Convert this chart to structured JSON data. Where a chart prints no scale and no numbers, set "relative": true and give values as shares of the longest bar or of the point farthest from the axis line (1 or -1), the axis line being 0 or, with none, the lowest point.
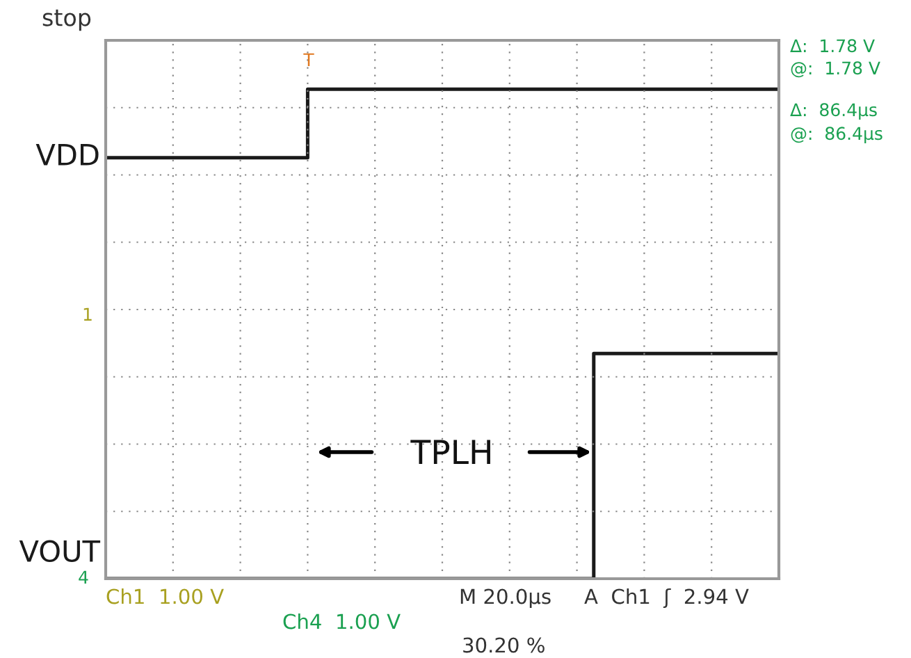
{
  "chart_data": {
    "type": "step",
    "relative": true,
    "grid": true,
    "legend": false,
    "categories": [
      null,
      null,
      null,
      null,
      null,
      null,
      null,
      null,
      null,
      null,
      null,
      null,
      null,
      null,
      null,
      null,
      null,
      null,
      null,
      null,
      null,
      null,
      null,
      null,
      null,
      null,
      null,
      null,
      null,
      null,
      null,
      null,
      null,
      null,
      null,
      null,
      null,
      null,
      null,
      null,
      null
    ],
    "series": [
      {
        "name": "VDD",
        "color": "#1a1a1a",
        "values": [
          0.86,
          0.86,
          0.86,
          0.86,
          0.86,
          0.86,
          0.86,
          0.86,
          0.86,
          0.86,
          0.86,
          0.86,
          1,
          1,
          1,
          1,
          1,
          1,
          1,
          1,
          1,
          1,
          1,
          1,
          1,
          1,
          1,
          1,
          1,
          1,
          1,
          1,
          1,
          1,
          1,
          1,
          1,
          1,
          1,
          1,
          1
        ]
      },
      {
        "name": "VOUT",
        "color": "#1a1a1a",
        "values": [
          0,
          0,
          0,
          0,
          0,
          0,
          0,
          0,
          0,
          0,
          0,
          0,
          0,
          0,
          0,
          0,
          0,
          0,
          0,
          0,
          0,
          0,
          0,
          0,
          0,
          0,
          0,
          0,
          0,
          0.46,
          0.46,
          0.46,
          0.46,
          0.46,
          0.46,
          0.46,
          0.46,
          0.46,
          0.46,
          0.46,
          0.46
        ]
      }
    ],
    "annotations": [
      "stop",
      "Δ:  1.78 V",
      "@:  1.78 V",
      "Δ:  86.4µs",
      "@:  86.4µs",
      "Ch1  1.00 V",
      "Ch4  1.00 V",
      "M 20.0µs",
      "A  Ch1  ʃ  2.94 V",
      "30.20 %",
      "TPLH",
      "1",
      "4",
      "T"
    ]
  }
}
